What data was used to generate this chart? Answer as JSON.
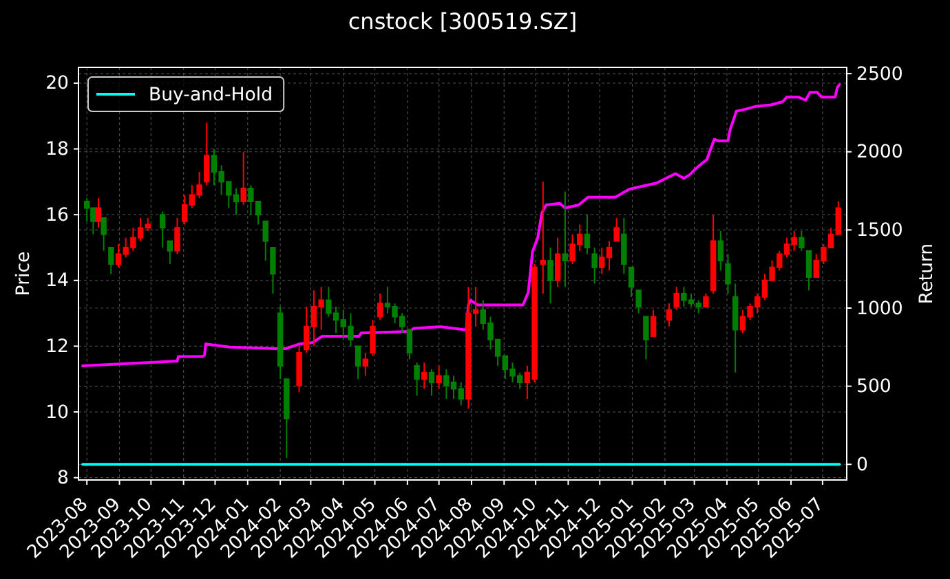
{
  "chart_data": {
    "type": "candlestick",
    "title": "cnstock [300519.SZ]",
    "ylabel": "Price",
    "y2label": "Return",
    "x": [
      "2023-08-01",
      "2023-08-07",
      "2023-08-12",
      "2023-08-17",
      "2023-08-24",
      "2023-08-31",
      "2023-09-07",
      "2023-09-14",
      "2023-09-21",
      "2023-09-28",
      "2023-10-12",
      "2023-10-19",
      "2023-10-26",
      "2023-11-02",
      "2023-11-09",
      "2023-11-16",
      "2023-11-23",
      "2023-11-30",
      "2023-12-07",
      "2023-12-14",
      "2023-12-21",
      "2023-12-28",
      "2024-01-04",
      "2024-01-11",
      "2024-01-18",
      "2024-01-25",
      "2024-02-01",
      "2024-02-07",
      "2024-02-19",
      "2024-02-26",
      "2024-03-04",
      "2024-03-11",
      "2024-03-18",
      "2024-03-25",
      "2024-04-01",
      "2024-04-08",
      "2024-04-15",
      "2024-04-22",
      "2024-04-29",
      "2024-05-06",
      "2024-05-13",
      "2024-05-20",
      "2024-05-27",
      "2024-06-03",
      "2024-06-10",
      "2024-06-17",
      "2024-06-24",
      "2024-07-01",
      "2024-07-08",
      "2024-07-15",
      "2024-07-22",
      "2024-07-29",
      "2024-08-05",
      "2024-08-12",
      "2024-08-19",
      "2024-08-26",
      "2024-09-02",
      "2024-09-09",
      "2024-09-16",
      "2024-09-23",
      "2024-09-30",
      "2024-10-08",
      "2024-10-15",
      "2024-10-22",
      "2024-10-29",
      "2024-11-05",
      "2024-11-12",
      "2024-11-19",
      "2024-11-26",
      "2024-12-03",
      "2024-12-10",
      "2024-12-17",
      "2024-12-24",
      "2024-12-31",
      "2025-01-07",
      "2025-01-14",
      "2025-01-21",
      "2025-02-05",
      "2025-02-12",
      "2025-02-19",
      "2025-02-26",
      "2025-03-05",
      "2025-03-12",
      "2025-03-19",
      "2025-03-26",
      "2025-04-02",
      "2025-04-09",
      "2025-04-16",
      "2025-04-23",
      "2025-04-30",
      "2025-05-07",
      "2025-05-14",
      "2025-05-21",
      "2025-05-28",
      "2025-06-04",
      "2025-06-11",
      "2025-06-18",
      "2025-06-25",
      "2025-07-02",
      "2025-07-09",
      "2025-07-16"
    ],
    "ohlc": [
      [
        16.4,
        16.5,
        15.8,
        16.2
      ],
      [
        16.2,
        16.2,
        15.4,
        15.8
      ],
      [
        15.8,
        16.5,
        15.6,
        16.2
      ],
      [
        15.9,
        15.9,
        14.9,
        15.4
      ],
      [
        15.0,
        15.0,
        14.2,
        14.5
      ],
      [
        14.5,
        15.1,
        14.4,
        14.8
      ],
      [
        14.8,
        15.3,
        14.7,
        15.0
      ],
      [
        15.0,
        15.6,
        14.9,
        15.3
      ],
      [
        15.3,
        15.9,
        15.2,
        15.6
      ],
      [
        15.6,
        15.9,
        15.5,
        15.7
      ],
      [
        16.0,
        16.1,
        15.0,
        15.6
      ],
      [
        15.2,
        15.2,
        14.5,
        14.9
      ],
      [
        14.9,
        15.9,
        14.8,
        15.6
      ],
      [
        15.8,
        16.6,
        15.7,
        16.3
      ],
      [
        16.3,
        16.9,
        16.2,
        16.6
      ],
      [
        16.6,
        17.3,
        16.5,
        16.9
      ],
      [
        17.0,
        18.8,
        16.9,
        17.8
      ],
      [
        17.8,
        18.0,
        16.9,
        17.3
      ],
      [
        17.3,
        17.5,
        16.6,
        17.0
      ],
      [
        17.0,
        17.0,
        16.2,
        16.6
      ],
      [
        16.6,
        16.8,
        16.0,
        16.4
      ],
      [
        16.4,
        17.9,
        16.3,
        16.8
      ],
      [
        16.8,
        16.9,
        16.0,
        16.4
      ],
      [
        16.4,
        16.4,
        15.7,
        16.0
      ],
      [
        15.8,
        15.8,
        14.6,
        15.2
      ],
      [
        15.0,
        15.0,
        13.6,
        14.2
      ],
      [
        13.0,
        13.2,
        11.0,
        11.4
      ],
      [
        11.0,
        11.0,
        8.6,
        9.8
      ],
      [
        10.8,
        12.0,
        10.6,
        11.8
      ],
      [
        11.9,
        13.2,
        11.8,
        12.6
      ],
      [
        12.6,
        13.7,
        12.0,
        13.2
      ],
      [
        13.2,
        13.8,
        12.5,
        13.4
      ],
      [
        13.4,
        13.8,
        12.9,
        13.0
      ],
      [
        13.0,
        13.2,
        12.4,
        12.8
      ],
      [
        12.8,
        13.1,
        12.2,
        12.6
      ],
      [
        12.6,
        13.0,
        12.0,
        12.2
      ],
      [
        12.0,
        12.0,
        11.0,
        11.4
      ],
      [
        11.4,
        11.8,
        11.1,
        11.6
      ],
      [
        11.8,
        12.8,
        11.7,
        12.6
      ],
      [
        12.9,
        13.6,
        12.8,
        13.3
      ],
      [
        13.3,
        13.8,
        13.0,
        13.2
      ],
      [
        13.2,
        13.3,
        12.7,
        12.9
      ],
      [
        12.9,
        13.0,
        12.4,
        12.6
      ],
      [
        12.5,
        12.5,
        11.6,
        11.8
      ],
      [
        11.4,
        11.5,
        10.5,
        11.0
      ],
      [
        11.0,
        11.5,
        10.7,
        11.2
      ],
      [
        11.2,
        11.3,
        10.5,
        10.9
      ],
      [
        10.9,
        11.4,
        10.7,
        11.1
      ],
      [
        11.1,
        11.3,
        10.4,
        10.8
      ],
      [
        10.9,
        11.1,
        10.4,
        10.7
      ],
      [
        10.7,
        10.9,
        10.2,
        10.4
      ],
      [
        10.4,
        13.8,
        10.1,
        13.0
      ],
      [
        13.0,
        13.8,
        12.6,
        13.1
      ],
      [
        13.1,
        13.4,
        12.5,
        12.7
      ],
      [
        12.7,
        12.9,
        11.9,
        12.2
      ],
      [
        12.2,
        12.2,
        11.4,
        11.7
      ],
      [
        11.7,
        11.7,
        11.0,
        11.3
      ],
      [
        11.3,
        11.5,
        10.9,
        11.1
      ],
      [
        11.1,
        11.2,
        10.7,
        10.9
      ],
      [
        10.9,
        11.4,
        10.4,
        11.2
      ],
      [
        11.0,
        14.5,
        10.9,
        14.4
      ],
      [
        14.5,
        17.0,
        13.6,
        14.6
      ],
      [
        14.6,
        15.0,
        13.3,
        14.0
      ],
      [
        14.0,
        15.3,
        13.8,
        14.8
      ],
      [
        14.8,
        16.7,
        13.8,
        14.6
      ],
      [
        14.6,
        15.4,
        14.5,
        15.1
      ],
      [
        15.1,
        15.7,
        14.9,
        15.4
      ],
      [
        15.4,
        16.0,
        14.8,
        15.0
      ],
      [
        14.8,
        15.0,
        13.9,
        14.4
      ],
      [
        14.4,
        15.0,
        14.2,
        14.7
      ],
      [
        14.7,
        15.2,
        14.3,
        15.0
      ],
      [
        15.2,
        15.9,
        15.2,
        15.6
      ],
      [
        15.4,
        15.9,
        14.2,
        14.5
      ],
      [
        14.4,
        14.4,
        13.5,
        13.8
      ],
      [
        13.7,
        13.7,
        13.0,
        13.2
      ],
      [
        12.9,
        12.9,
        11.6,
        12.2
      ],
      [
        12.3,
        13.1,
        12.3,
        12.9
      ],
      [
        12.8,
        13.3,
        12.6,
        13.1
      ],
      [
        13.2,
        13.8,
        13.1,
        13.6
      ],
      [
        13.6,
        13.8,
        13.2,
        13.4
      ],
      [
        13.4,
        13.6,
        13.2,
        13.3
      ],
      [
        13.3,
        13.4,
        13.0,
        13.2
      ],
      [
        13.2,
        13.6,
        13.2,
        13.5
      ],
      [
        13.7,
        16.0,
        13.6,
        15.2
      ],
      [
        15.2,
        15.5,
        14.3,
        14.6
      ],
      [
        14.5,
        14.8,
        13.6,
        13.9
      ],
      [
        13.5,
        13.9,
        11.2,
        12.5
      ],
      [
        12.5,
        13.1,
        12.4,
        12.9
      ],
      [
        12.9,
        13.3,
        12.8,
        13.2
      ],
      [
        13.2,
        13.6,
        13.0,
        13.5
      ],
      [
        13.5,
        14.2,
        13.4,
        14.0
      ],
      [
        14.0,
        14.6,
        14.0,
        14.4
      ],
      [
        14.4,
        14.9,
        14.3,
        14.8
      ],
      [
        14.8,
        15.3,
        14.7,
        15.1
      ],
      [
        15.1,
        15.5,
        14.9,
        15.3
      ],
      [
        15.3,
        15.5,
        14.9,
        15.0
      ],
      [
        14.9,
        14.9,
        13.7,
        14.1
      ],
      [
        14.1,
        14.8,
        14.1,
        14.6
      ],
      [
        14.6,
        15.1,
        14.5,
        15.0
      ],
      [
        15.0,
        15.6,
        15.0,
        15.4
      ],
      [
        15.4,
        16.4,
        15.4,
        16.2
      ]
    ],
    "series": [
      {
        "type": "line",
        "axis": "y2",
        "color": "#ff00ff",
        "x": [
          "2023-07-28",
          "2023-10-24",
          "2023-10-26",
          "2023-10-27",
          "2023-11-19",
          "2023-11-21",
          "2023-11-22",
          "2023-12-15",
          "2024-01-28",
          "2024-02-06",
          "2024-02-19",
          "2024-03-03",
          "2024-03-12",
          "2024-04-16",
          "2024-04-18",
          "2024-06-03",
          "2024-06-07",
          "2024-07-01",
          "2024-07-03",
          "2024-07-27",
          "2024-07-29",
          "2024-07-31",
          "2024-08-07",
          "2024-09-19",
          "2024-09-24",
          "2024-09-28",
          "2024-10-03",
          "2024-10-07",
          "2024-10-11",
          "2024-10-24",
          "2024-10-29",
          "2024-11-11",
          "2024-11-20",
          "2024-12-16",
          "2024-12-29",
          "2025-01-04",
          "2025-01-24",
          "2025-02-08",
          "2025-02-11",
          "2025-02-19",
          "2025-02-24",
          "2025-03-02",
          "2025-03-09",
          "2025-03-13",
          "2025-03-15",
          "2025-03-20",
          "2025-03-24",
          "2025-04-02",
          "2025-04-04",
          "2025-04-10",
          "2025-04-17",
          "2025-04-28",
          "2025-05-13",
          "2025-05-24",
          "2025-05-28",
          "2025-06-08",
          "2025-06-15",
          "2025-06-19",
          "2025-06-26",
          "2025-06-30",
          "2025-07-13",
          "2025-07-15",
          "2025-07-17"
        ],
        "values": [
          630,
          660,
          660,
          690,
          690,
          700,
          770,
          750,
          740,
          740,
          770,
          780,
          820,
          820,
          840,
          850,
          870,
          880,
          880,
          860,
          1020,
          1050,
          1020,
          1020,
          1100,
          1360,
          1450,
          1610,
          1660,
          1670,
          1640,
          1660,
          1710,
          1710,
          1760,
          1770,
          1800,
          1850,
          1860,
          1830,
          1850,
          1890,
          1930,
          1950,
          1990,
          2080,
          2070,
          2070,
          2140,
          2260,
          2270,
          2290,
          2300,
          2320,
          2350,
          2350,
          2330,
          2380,
          2380,
          2350,
          2350,
          2410,
          2430
        ]
      },
      {
        "type": "line",
        "axis": "y2",
        "name": "Buy-and-Hold",
        "color": "#00ffff",
        "x": [
          "2023-07-28",
          "2025-07-17"
        ],
        "values": [
          0,
          0
        ]
      }
    ],
    "xlim": [
      "2023-07-24",
      "2025-07-24"
    ],
    "xticks": [
      "2023-08",
      "2023-09",
      "2023-10",
      "2023-11",
      "2023-12",
      "2024-01",
      "2024-02",
      "2024-03",
      "2024-04",
      "2024-05",
      "2024-06",
      "2024-07",
      "2024-08",
      "2024-09",
      "2024-10",
      "2024-11",
      "2024-12",
      "2025-01",
      "2025-02",
      "2025-03",
      "2025-04",
      "2025-05",
      "2025-06",
      "2025-07"
    ],
    "ylim": [
      7.93,
      20.48
    ],
    "yticks": [
      8,
      10,
      12,
      14,
      16,
      18,
      20
    ],
    "y2lim": [
      -100,
      2540
    ],
    "y2ticks": [
      0,
      500,
      1000,
      1500,
      2000,
      2500
    ],
    "grid": true,
    "legend": "top left"
  }
}
